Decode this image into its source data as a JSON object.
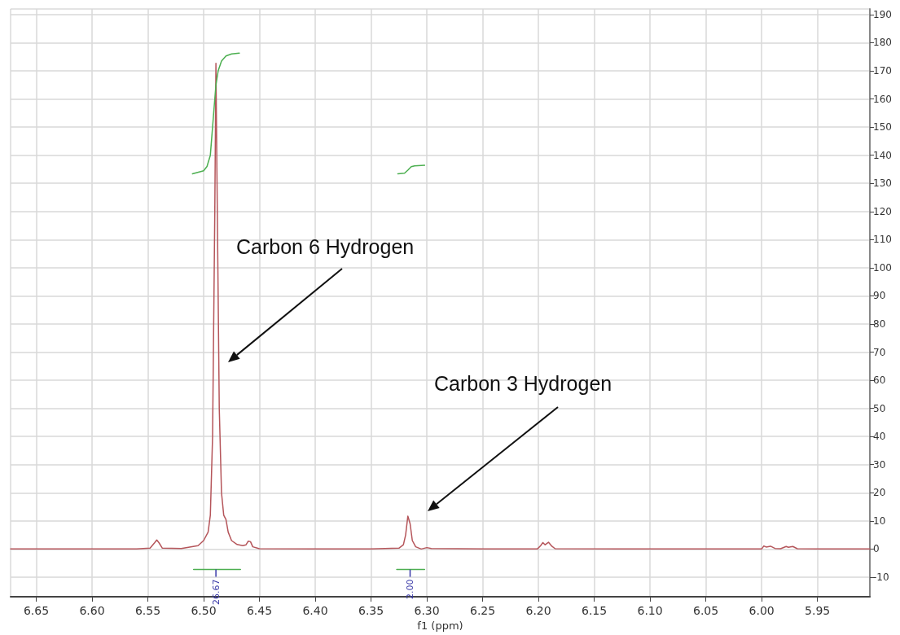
{
  "chart_data": {
    "type": "line",
    "xlabel": "f1 (ppm)",
    "xlim": [
      6.673,
      5.903
    ],
    "ylim": [
      -17,
      192
    ],
    "xticks": [
      6.65,
      {
        "value": 6.6,
        "label": "6.60"
      },
      6.55,
      {
        "value": 6.5,
        "label": "6.50"
      },
      6.45,
      {
        "value": 6.4,
        "label": "6.40"
      },
      6.35,
      {
        "value": 6.3,
        "label": "6.30"
      },
      6.25,
      {
        "value": 6.2,
        "label": "6.20"
      },
      6.15,
      {
        "value": 6.1,
        "label": "6.10"
      },
      6.05,
      {
        "value": 6.0,
        "label": "6.00"
      },
      5.95
    ],
    "yticks": [
      -10,
      0,
      10,
      20,
      30,
      40,
      50,
      60,
      70,
      80,
      90,
      100,
      110,
      120,
      130,
      140,
      150,
      160,
      170,
      180,
      190
    ],
    "grid": true,
    "marker": "none",
    "line_style": "solid",
    "series": [
      {
        "color": "#b5555a",
        "x": [
          6.673,
          6.6,
          6.56,
          6.548,
          6.544,
          6.542,
          6.54,
          6.537,
          6.52,
          6.505,
          6.5,
          6.496,
          6.494,
          6.492,
          6.49,
          6.489,
          6.488,
          6.486,
          6.484,
          6.482,
          6.48,
          6.478,
          6.475,
          6.47,
          6.465,
          6.462,
          6.46,
          6.458,
          6.456,
          6.45,
          6.4,
          6.35,
          6.325,
          6.321,
          6.319,
          6.317,
          6.315,
          6.313,
          6.31,
          6.305,
          6.3,
          6.296,
          6.25,
          6.201,
          6.198,
          6.196,
          6.194,
          6.191,
          6.188,
          6.185,
          6.1,
          6.05,
          6.0,
          5.998,
          5.996,
          5.992,
          5.988,
          5.983,
          5.978,
          5.976,
          5.972,
          5.968,
          5.95,
          5.903
        ],
        "values": [
          0,
          0,
          0,
          0.3,
          2.2,
          3.2,
          2.2,
          0.3,
          0.2,
          1.2,
          3,
          6,
          12,
          40,
          120,
          172.7,
          130,
          50,
          20,
          12,
          10.5,
          6,
          3,
          1.6,
          1.2,
          1.5,
          2.8,
          2.6,
          0.8,
          0.1,
          0,
          0,
          0.3,
          1.5,
          5,
          11.7,
          9,
          3,
          0.8,
          0,
          0.5,
          0.2,
          0,
          0,
          1.2,
          2.3,
          1.5,
          2.4,
          1,
          0.1,
          0,
          0,
          0,
          1.1,
          0.7,
          1,
          0.2,
          0.1,
          0.9,
          0.6,
          0.9,
          0.1,
          0,
          0
        ]
      },
      {
        "color": "#4caf50",
        "x": [
          6.51,
          6.5,
          6.497,
          6.494,
          6.492,
          6.49,
          6.489,
          6.487,
          6.484,
          6.48,
          6.475,
          6.468
        ],
        "values": [
          133.4,
          134.5,
          136,
          140,
          150,
          160,
          165,
          170,
          173.5,
          175.3,
          176,
          176.3
        ]
      },
      {
        "color": "#4caf50",
        "x": [
          6.326,
          6.32,
          6.317,
          6.314,
          6.311,
          6.302
        ],
        "values": [
          133.4,
          133.6,
          134.7,
          135.9,
          136.2,
          136.4
        ]
      },
      {
        "color": "#4caf50",
        "x": [
          6.509,
          6.467
        ],
        "values": [
          -7.3,
          -7.3
        ]
      },
      {
        "color": "#4caf50",
        "x": [
          6.327,
          6.302
        ],
        "values": [
          -7.3,
          -7.3
        ]
      }
    ],
    "annotations": [
      "Carbon 6 Hydrogen",
      "Carbon 3 Hydrogen",
      {
        "text": "26.67",
        "x": 6.489,
        "y": -7.3
      },
      {
        "text": "2.00",
        "x": 6.315,
        "y": -7.3
      }
    ]
  }
}
